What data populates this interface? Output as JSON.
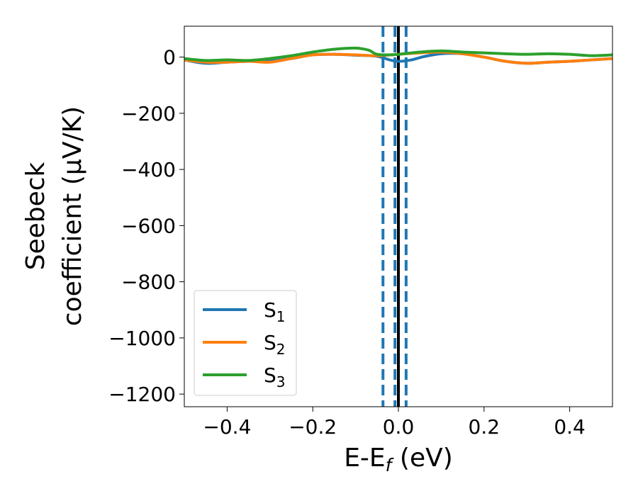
{
  "chart_data": {
    "type": "line",
    "xlabel": {
      "main": "E-E",
      "sub": "f",
      "unit": " (eV)"
    },
    "ylabel": {
      "line1": "Seebeck",
      "line2": "coefficient  (μV/K)"
    },
    "xlim": [
      -0.5,
      0.5
    ],
    "ylim": [
      -1245,
      110
    ],
    "xticks": [
      -0.4,
      -0.2,
      0.0,
      0.2,
      0.4
    ],
    "xtick_labels": [
      "−0.4",
      "−0.2",
      "0.0",
      "0.2",
      "0.4"
    ],
    "yticks": [
      0,
      -200,
      -400,
      -600,
      -800,
      -1000,
      -1200
    ],
    "ytick_labels": [
      "0",
      "−200",
      "−400",
      "−600",
      "−800",
      "−1000",
      "−1200"
    ],
    "grid": false,
    "legend_position": "lower-left",
    "vlines": [
      {
        "x": 0.0,
        "style": "solid",
        "color": "#000000"
      },
      {
        "x": -0.036,
        "style": "dashed",
        "color": "#1f77b4"
      },
      {
        "x": -0.008,
        "style": "dashed",
        "color": "#1f77b4"
      },
      {
        "x": 0.018,
        "style": "dashed",
        "color": "#1f77b4"
      }
    ],
    "series": [
      {
        "name": "S",
        "sub": "1",
        "color": "#1f77b4",
        "x": [
          -0.5,
          -0.45,
          -0.4,
          -0.35,
          -0.3,
          -0.25,
          -0.2,
          -0.15,
          -0.1,
          -0.05,
          -0.02,
          0.0,
          0.03,
          0.06,
          0.1,
          0.15,
          0.2,
          0.25,
          0.3,
          0.35,
          0.4,
          0.45,
          0.5
        ],
        "y": [
          -10,
          -22,
          -18,
          -15,
          -15,
          -5,
          8,
          10,
          7,
          3,
          -10,
          -15,
          -10,
          2,
          12,
          12,
          0,
          -15,
          -22,
          -18,
          -15,
          -10,
          -5
        ]
      },
      {
        "name": "S",
        "sub": "2",
        "color": "#ff7f0e",
        "x": [
          -0.5,
          -0.45,
          -0.4,
          -0.35,
          -0.3,
          -0.25,
          -0.2,
          -0.15,
          -0.1,
          -0.05,
          0.0,
          0.05,
          0.1,
          0.15,
          0.2,
          0.25,
          0.3,
          0.35,
          0.4,
          0.45,
          0.5
        ],
        "y": [
          -10,
          -18,
          -18,
          -15,
          -18,
          -5,
          8,
          10,
          8,
          5,
          10,
          15,
          18,
          12,
          0,
          -15,
          -22,
          -18,
          -15,
          -10,
          -5
        ]
      },
      {
        "name": "S",
        "sub": "3",
        "color": "#2ca02c",
        "x": [
          -0.5,
          -0.45,
          -0.4,
          -0.35,
          -0.3,
          -0.25,
          -0.2,
          -0.15,
          -0.1,
          -0.07,
          -0.05,
          -0.02,
          0.0,
          0.05,
          0.1,
          0.15,
          0.2,
          0.25,
          0.3,
          0.35,
          0.4,
          0.45,
          0.5
        ],
        "y": [
          -5,
          -12,
          -10,
          -12,
          -5,
          5,
          18,
          28,
          32,
          25,
          10,
          8,
          10,
          18,
          22,
          18,
          15,
          12,
          10,
          12,
          10,
          5,
          8
        ]
      }
    ]
  }
}
